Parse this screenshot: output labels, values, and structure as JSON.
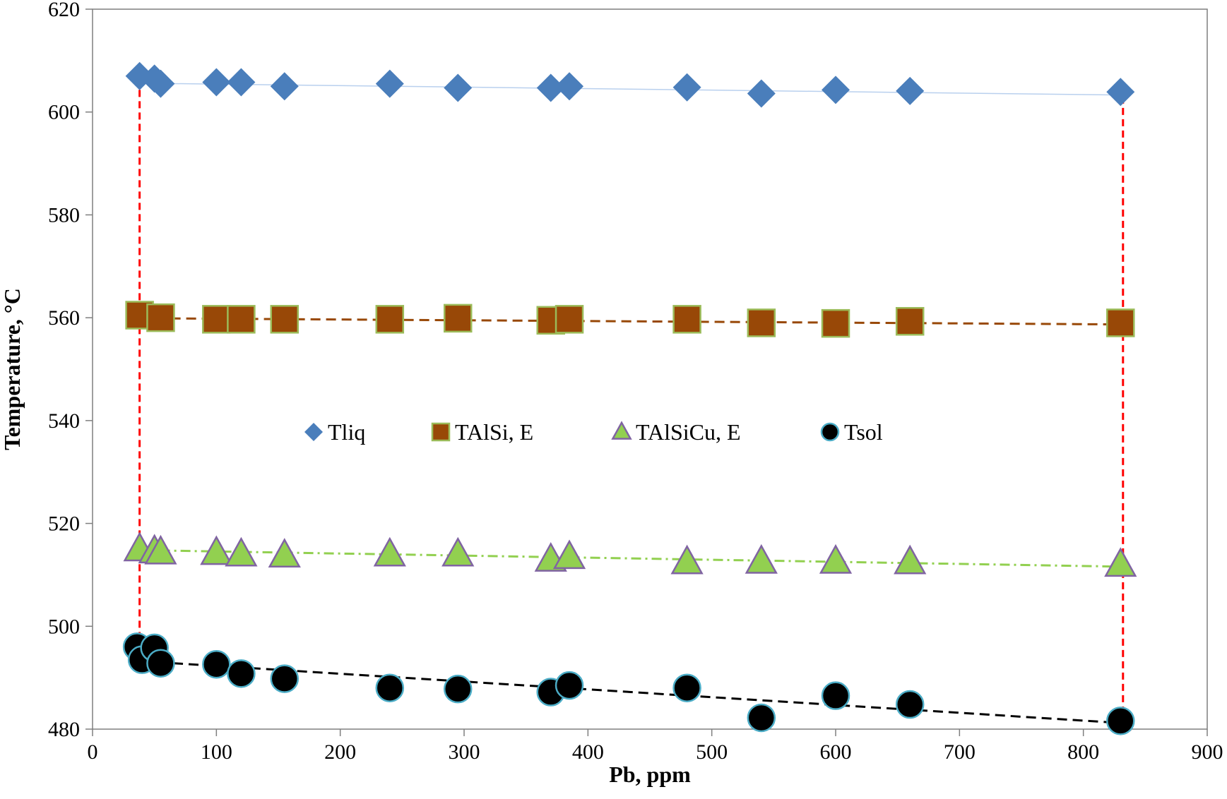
{
  "chart_data": {
    "type": "scatter",
    "title": "",
    "xlabel": "Pb, ppm",
    "ylabel": "Temperature,  °C",
    "xlim": [
      0,
      900
    ],
    "ylim": [
      480,
      620
    ],
    "xticks": [
      0,
      100,
      200,
      300,
      400,
      500,
      600,
      700,
      800,
      900
    ],
    "yticks": [
      480,
      500,
      520,
      540,
      560,
      580,
      600,
      620
    ],
    "grid": false,
    "legend_position": "center",
    "series": [
      {
        "name": "Tliq",
        "marker": "diamond",
        "color": "#4a7ebb",
        "line_style": "solid",
        "line_color": "#b9d0ee",
        "trend": [
          [
            40,
            605.6
          ],
          [
            830,
            603.3
          ]
        ],
        "points": [
          [
            38,
            607
          ],
          [
            50,
            606.5
          ],
          [
            55,
            605.5
          ],
          [
            100,
            605.8
          ],
          [
            120,
            605.8
          ],
          [
            155,
            605
          ],
          [
            240,
            605.5
          ],
          [
            295,
            604.7
          ],
          [
            370,
            604.7
          ],
          [
            385,
            605
          ],
          [
            480,
            604.8
          ],
          [
            540,
            603.6
          ],
          [
            600,
            604.3
          ],
          [
            660,
            604.1
          ],
          [
            830,
            603.9
          ]
        ]
      },
      {
        "name": "TAlSi, E",
        "marker": "square",
        "color": "#984807",
        "edge_color": "#9bbb59",
        "line_style": "dashed",
        "line_color": "#984807",
        "trend": [
          [
            38,
            559.9
          ],
          [
            830,
            558.7
          ]
        ],
        "points": [
          [
            38,
            560.5
          ],
          [
            55,
            560
          ],
          [
            100,
            559.7
          ],
          [
            120,
            559.7
          ],
          [
            155,
            559.7
          ],
          [
            240,
            559.7
          ],
          [
            295,
            559.9
          ],
          [
            370,
            559.5
          ],
          [
            385,
            559.7
          ],
          [
            480,
            559.7
          ],
          [
            540,
            559.0
          ],
          [
            600,
            558.9
          ],
          [
            660,
            559.3
          ],
          [
            830,
            559.0
          ]
        ]
      },
      {
        "name": "TAlSiCu, E",
        "marker": "triangle",
        "color": "#92d050",
        "edge_color": "#8064a2",
        "line_style": "dashdot",
        "line_color": "#92d050",
        "trend": [
          [
            38,
            514.8
          ],
          [
            830,
            511.6
          ]
        ],
        "points": [
          [
            38,
            515
          ],
          [
            50,
            514.6
          ],
          [
            55,
            514.4
          ],
          [
            100,
            514.3
          ],
          [
            120,
            514
          ],
          [
            155,
            513.8
          ],
          [
            240,
            514
          ],
          [
            295,
            514
          ],
          [
            370,
            513.0
          ],
          [
            385,
            513.5
          ],
          [
            480,
            512.5
          ],
          [
            540,
            512.6
          ],
          [
            600,
            512.6
          ],
          [
            660,
            512.5
          ],
          [
            830,
            512.0
          ]
        ]
      },
      {
        "name": "Tsol",
        "marker": "circle",
        "color": "#000000",
        "edge_color": "#4bacc6",
        "line_style": "dashed",
        "line_color": "#000000",
        "trend": [
          [
            40,
            493.2
          ],
          [
            830,
            481.2
          ]
        ],
        "points": [
          [
            36,
            496
          ],
          [
            40,
            493.5
          ],
          [
            50,
            495.8
          ],
          [
            55,
            492.8
          ],
          [
            100,
            492.6
          ],
          [
            120,
            490.8
          ],
          [
            155,
            489.8
          ],
          [
            240,
            488.0
          ],
          [
            295,
            487.8
          ],
          [
            370,
            487.2
          ],
          [
            385,
            488.5
          ],
          [
            480,
            488.0
          ],
          [
            540,
            482.2
          ],
          [
            600,
            486.5
          ],
          [
            660,
            484.8
          ],
          [
            830,
            481.6
          ]
        ]
      }
    ],
    "annotations": [
      {
        "type": "arrow",
        "color": "#ff0000",
        "style": "dashed",
        "from": [
          38,
          606.5
        ],
        "to": [
          38,
          492.5
        ]
      },
      {
        "type": "arrow",
        "color": "#ff0000",
        "style": "dashed",
        "from": [
          832,
          603
        ],
        "to": [
          832,
          480.8
        ]
      }
    ]
  }
}
